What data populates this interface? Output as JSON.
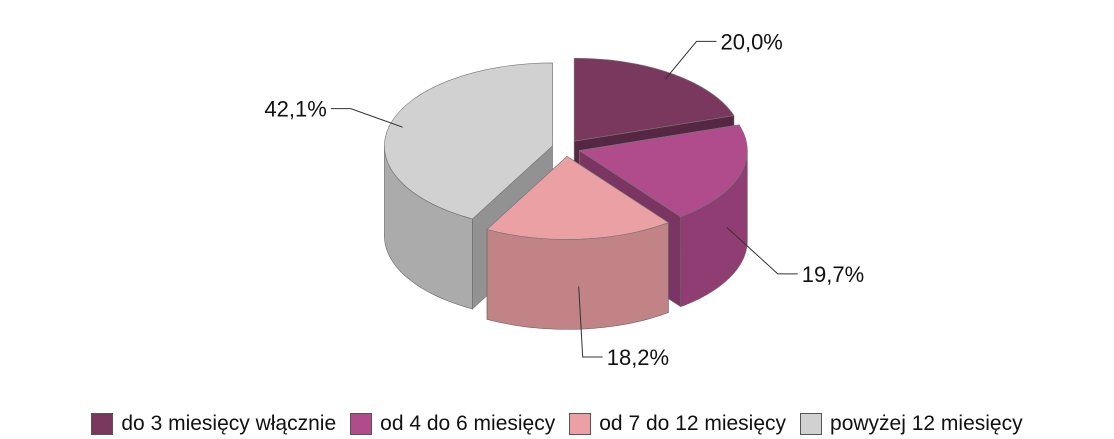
{
  "chart_data": {
    "type": "pie",
    "title": "",
    "categories": [
      "do 3 miesięcy włącznie",
      "od 4 do 6 miesięcy",
      "od 7 do 12 miesięcy",
      "powyżej 12 miesięcy"
    ],
    "values": [
      20.0,
      19.7,
      18.2,
      42.1
    ],
    "data_labels": [
      "20,0%",
      "19,7%",
      "18,2%",
      "42,1%"
    ],
    "colors": [
      "#7a385f",
      "#b04b8c",
      "#eba0a4",
      "#d1d1d1"
    ],
    "style": "3d-exploded",
    "legend_position": "bottom"
  },
  "legend": [
    {
      "label": "do 3 miesięcy włącznie",
      "color": "#7a385f"
    },
    {
      "label": "od 4 do 6 miesięcy",
      "color": "#b04b8c"
    },
    {
      "label": "od 7 do 12 miesięcy",
      "color": "#eba0a4"
    },
    {
      "label": "powyżej 12 miesięcy",
      "color": "#d1d1d1"
    }
  ]
}
